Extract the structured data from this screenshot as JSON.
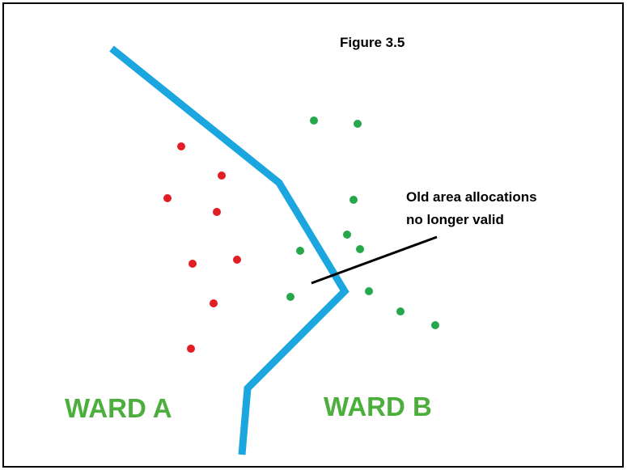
{
  "title": "Figure 3.5",
  "annotation": {
    "lines": [
      "Old area allocations",
      "no longer valid"
    ]
  },
  "wards": [
    {
      "label": "WARD A"
    },
    {
      "label": "WARD B"
    }
  ]
}
